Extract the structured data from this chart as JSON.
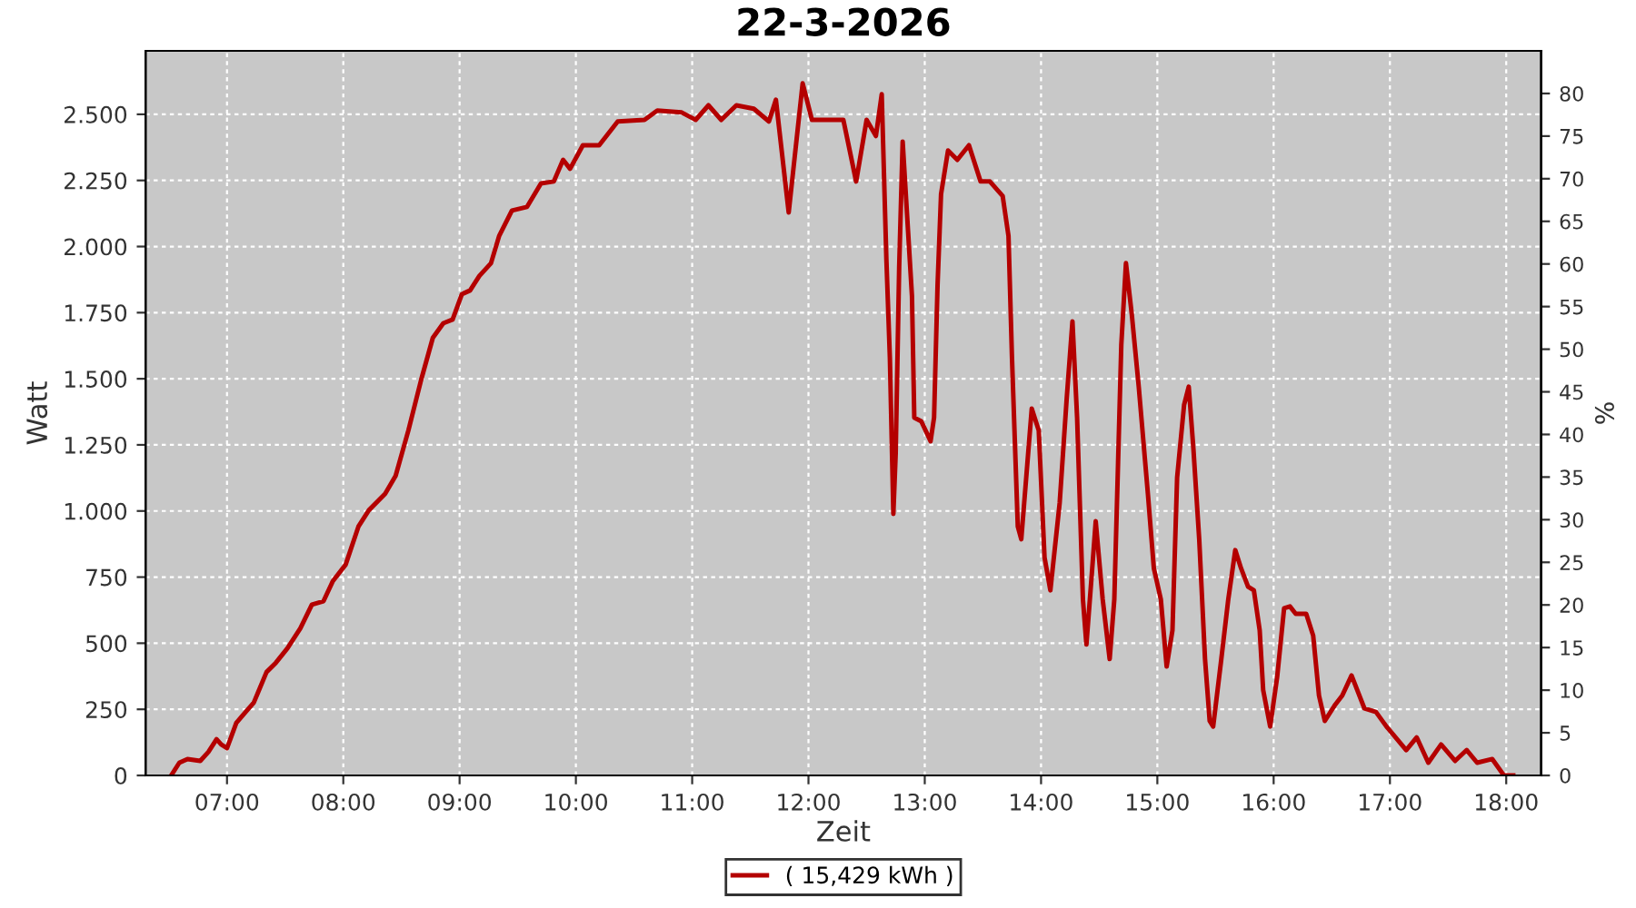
{
  "chart_data": {
    "type": "line",
    "title": "22-3-2026",
    "xlabel": "Zeit",
    "ylabel": "Watt",
    "y2label": "%",
    "xlim": [
      6.3,
      18.3
    ],
    "xticks": [
      {
        "value": 7,
        "label": "07:00"
      },
      {
        "value": 8,
        "label": "08:00"
      },
      {
        "value": 9,
        "label": "09:00"
      },
      {
        "value": 10,
        "label": "10:00"
      },
      {
        "value": 11,
        "label": "11:00"
      },
      {
        "value": 12,
        "label": "12:00"
      },
      {
        "value": 13,
        "label": "13:00"
      },
      {
        "value": 14,
        "label": "14:00"
      },
      {
        "value": 15,
        "label": "15:00"
      },
      {
        "value": 16,
        "label": "16:00"
      },
      {
        "value": 17,
        "label": "17:00"
      },
      {
        "value": 18,
        "label": "18:00"
      }
    ],
    "ylim": [
      0,
      2740
    ],
    "yticks": [
      0,
      250,
      500,
      750,
      {
        "value": 1000,
        "label": "1.000"
      },
      {
        "value": 1250,
        "label": "1.250"
      },
      {
        "value": 1500,
        "label": "1.500"
      },
      {
        "value": 1750,
        "label": "1.750"
      },
      {
        "value": 2000,
        "label": "2.000"
      },
      {
        "value": 2250,
        "label": "2.250"
      },
      {
        "value": 2500,
        "label": "2.500"
      }
    ],
    "y2lim": [
      0,
      85
    ],
    "y2ticks": [
      0,
      5,
      10,
      15,
      20,
      25,
      30,
      35,
      40,
      45,
      50,
      55,
      60,
      65,
      70,
      75,
      80
    ],
    "grid": true,
    "legend": "bottom",
    "marker": "none",
    "line_style": "solid",
    "series": [
      {
        "name": "( 15,429 kWh )",
        "color": "#b40000",
        "x": [
          6.52,
          6.59,
          6.66,
          6.77,
          6.84,
          6.91,
          6.95,
          7.0,
          7.08,
          7.16,
          7.23,
          7.34,
          7.42,
          7.52,
          7.63,
          7.73,
          7.83,
          7.91,
          8.02,
          8.13,
          8.22,
          8.36,
          8.45,
          8.56,
          8.67,
          8.77,
          8.86,
          8.94,
          9.02,
          9.09,
          9.17,
          9.27,
          9.34,
          9.45,
          9.58,
          9.7,
          9.81,
          9.89,
          9.95,
          10.06,
          10.2,
          10.36,
          10.59,
          10.7,
          10.91,
          11.03,
          11.14,
          11.25,
          11.38,
          11.53,
          11.66,
          11.72,
          11.83,
          11.95,
          12.03,
          12.3,
          12.41,
          12.5,
          12.58,
          12.63,
          12.67,
          12.7,
          12.73,
          12.75,
          12.78,
          12.81,
          12.84,
          12.89,
          12.91,
          12.97,
          13.05,
          13.08,
          13.11,
          13.14,
          13.2,
          13.28,
          13.38,
          13.48,
          13.56,
          13.67,
          13.72,
          13.75,
          13.8,
          13.83,
          13.88,
          13.92,
          13.98,
          14.03,
          14.08,
          14.16,
          14.22,
          14.27,
          14.31,
          14.36,
          14.39,
          14.44,
          14.47,
          14.53,
          14.59,
          14.63,
          14.69,
          14.73,
          14.78,
          14.84,
          14.92,
          14.97,
          15.03,
          15.08,
          15.13,
          15.17,
          15.23,
          15.27,
          15.31,
          15.36,
          15.41,
          15.45,
          15.48,
          15.55,
          15.61,
          15.67,
          15.72,
          15.78,
          15.83,
          15.88,
          15.91,
          15.97,
          16.03,
          16.09,
          16.14,
          16.19,
          16.28,
          16.34,
          16.39,
          16.44,
          16.53,
          16.59,
          16.67,
          16.78,
          16.88,
          16.97,
          17.14,
          17.23,
          17.33,
          17.44,
          17.56,
          17.66,
          17.75,
          17.88,
          17.98,
          18.06
        ],
        "values": [
          0,
          48,
          62,
          55,
          89,
          137,
          117,
          103,
          199,
          240,
          275,
          391,
          426,
          481,
          556,
          646,
          659,
          735,
          797,
          941,
          1003,
          1065,
          1133,
          1305,
          1497,
          1655,
          1710,
          1724,
          1820,
          1834,
          1889,
          1937,
          2040,
          2136,
          2150,
          2239,
          2246,
          2328,
          2294,
          2383,
          2383,
          2473,
          2479,
          2514,
          2507,
          2479,
          2534,
          2479,
          2534,
          2521,
          2473,
          2555,
          2129,
          2617,
          2479,
          2479,
          2246,
          2479,
          2418,
          2576,
          1951,
          1580,
          989,
          1216,
          1923,
          2397,
          2177,
          1813,
          1353,
          1339,
          1264,
          1353,
          1854,
          2198,
          2363,
          2328,
          2383,
          2246,
          2246,
          2191,
          2040,
          1580,
          941,
          893,
          1168,
          1387,
          1305,
          824,
          700,
          1030,
          1422,
          1717,
          1353,
          666,
          495,
          783,
          961,
          666,
          440,
          666,
          1628,
          1937,
          1744,
          1470,
          1058,
          783,
          666,
          412,
          549,
          1126,
          1401,
          1470,
          1236,
          893,
          440,
          206,
          185,
          440,
          666,
          852,
          783,
          714,
          700,
          549,
          323,
          185,
          371,
          632,
          639,
          611,
          611,
          529,
          302,
          206,
          268,
          302,
          378,
          254,
          240,
          185,
          96,
          144,
          48,
          117,
          55,
          96,
          48,
          62,
          0,
          0
        ]
      }
    ]
  }
}
